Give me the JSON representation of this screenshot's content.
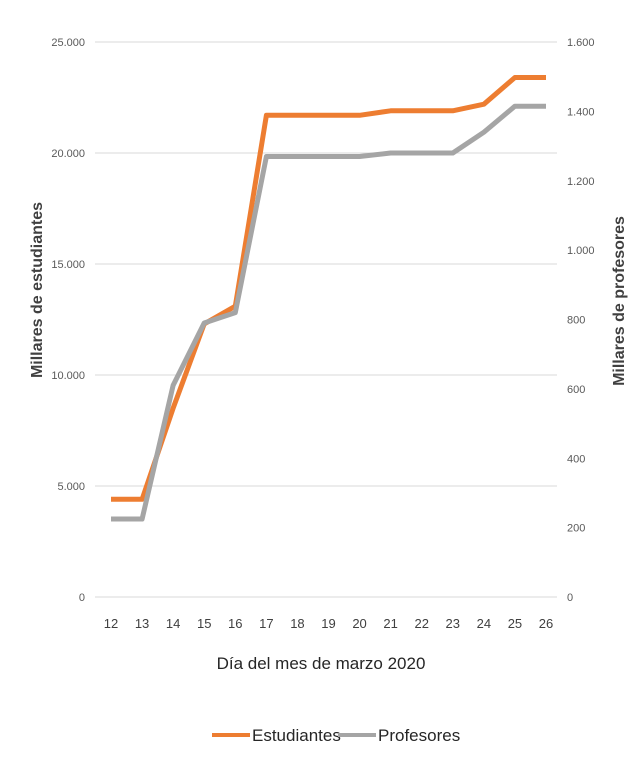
{
  "chart_data": {
    "type": "line",
    "x": [
      "12",
      "13",
      "14",
      "15",
      "16",
      "17",
      "18",
      "19",
      "20",
      "21",
      "22",
      "23",
      "24",
      "25",
      "26"
    ],
    "xlabel": "Día del mes de marzo 2020",
    "y_left": {
      "label": "Millares de estudiantes",
      "ylim": [
        0,
        25000
      ],
      "ticks": [
        0,
        5000,
        10000,
        15000,
        20000,
        25000
      ],
      "tick_labels": [
        "0",
        "5.000",
        "10.000",
        "15.000",
        "20.000",
        "25.000"
      ]
    },
    "y_right": {
      "label": "Millares de profesores",
      "ylim": [
        0,
        1600
      ],
      "ticks": [
        0,
        200,
        400,
        600,
        800,
        1000,
        1200,
        1400,
        1600
      ],
      "tick_labels": [
        "0",
        "200",
        "400",
        "600",
        "800",
        "1.000",
        "1.200",
        "1.400",
        "1.600"
      ]
    },
    "series": [
      {
        "name": "Estudiantes",
        "axis": "left",
        "color": "#ED7D31",
        "values": [
          4400,
          4400,
          8500,
          12300,
          13100,
          21700,
          21700,
          21700,
          21700,
          21900,
          21900,
          21900,
          22200,
          23400,
          23400
        ]
      },
      {
        "name": "Profesores",
        "axis": "right",
        "color": "#A5A5A5",
        "values": [
          225,
          225,
          610,
          790,
          820,
          1270,
          1270,
          1270,
          1270,
          1280,
          1280,
          1280,
          1340,
          1415,
          1415
        ]
      }
    ],
    "grid": true,
    "legend": "bottom"
  }
}
